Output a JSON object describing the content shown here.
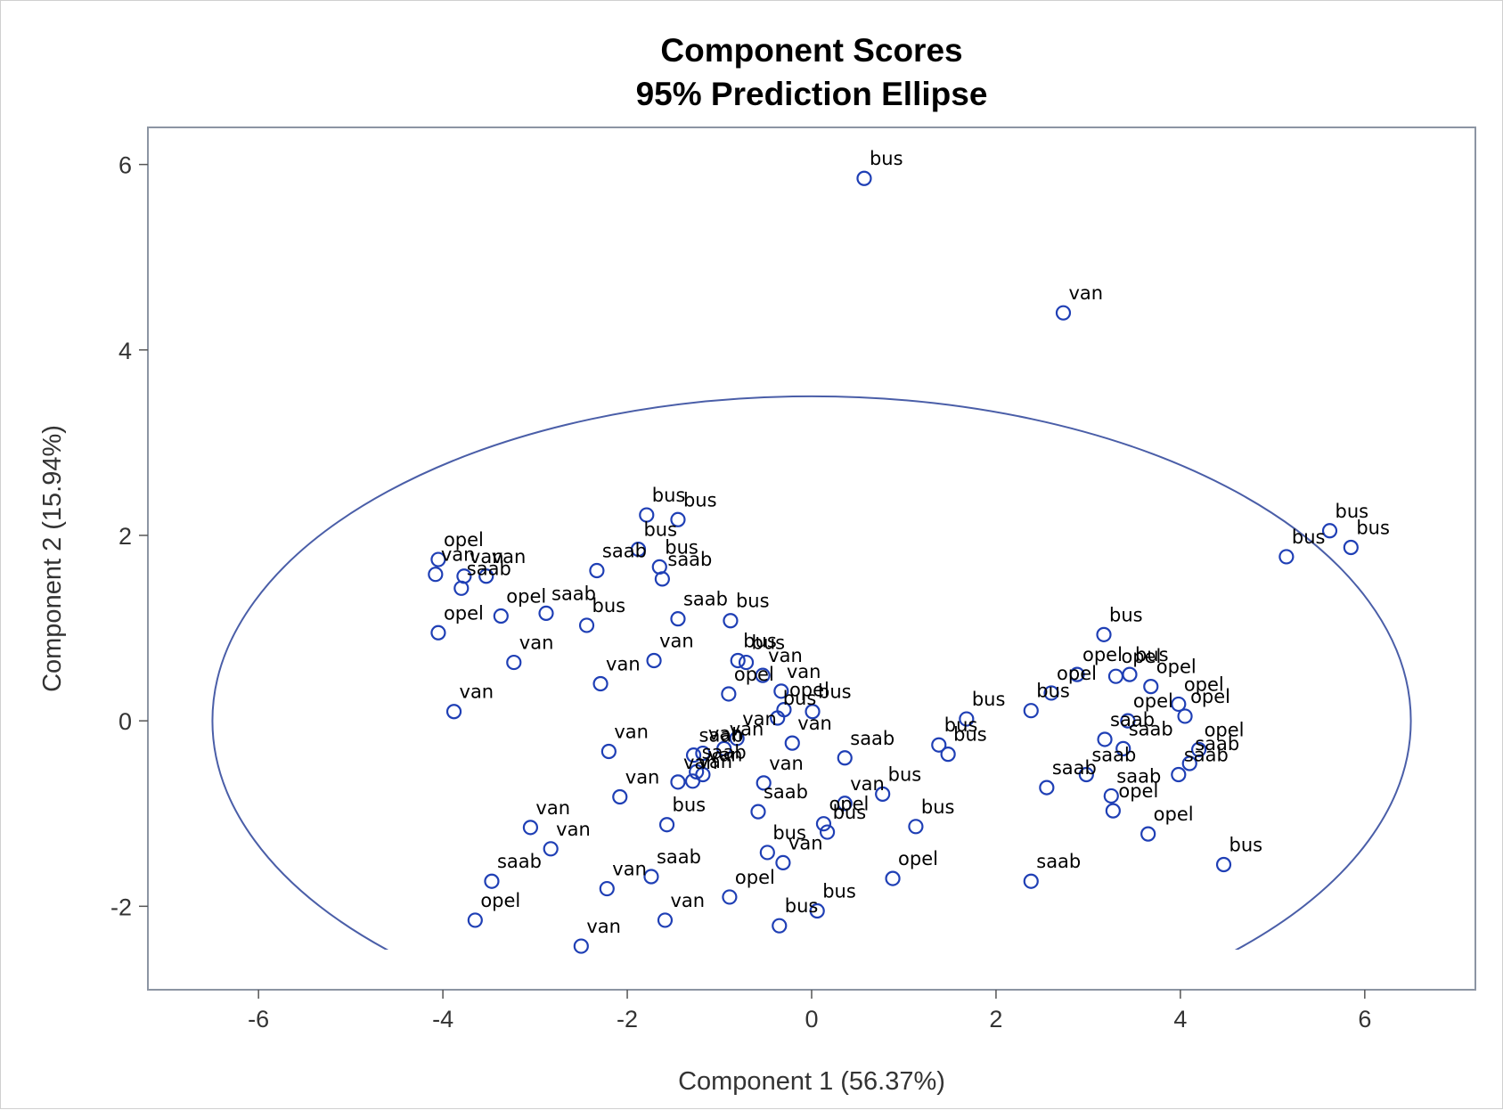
{
  "chart_data": {
    "type": "scatter",
    "title": "Component Scores",
    "subtitle": "95% Prediction Ellipse",
    "xlabel": "Component 1 (56.37%)",
    "ylabel": "Component 2 (15.94%)",
    "xlim": [
      -7.2,
      7.2
    ],
    "ylim": [
      -2.9,
      6.4
    ],
    "xticks": [
      -6,
      -4,
      -2,
      0,
      2,
      4,
      6
    ],
    "xtick_labels": [
      "-6",
      "-4",
      "-2",
      "0",
      "2",
      "4",
      "6"
    ],
    "yticks": [
      -2,
      0,
      2,
      4,
      6
    ],
    "ytick_labels": [
      "-2",
      "0",
      "2",
      "4",
      "6"
    ],
    "grid": false,
    "legend": "none",
    "ellipse": {
      "center": [
        0,
        0
      ],
      "semi_x": 6.5,
      "semi_y": 3.5,
      "label": "95% Prediction Ellipse"
    },
    "colors": {
      "marker": "#1f3fb5",
      "ellipse": "#4a5ea8",
      "frame": "#8c95a3"
    },
    "points": [
      {
        "x": 0.57,
        "y": 5.85,
        "label": "bus"
      },
      {
        "x": 2.73,
        "y": 4.4,
        "label": "van"
      },
      {
        "x": -1.79,
        "y": 2.22,
        "label": "bus"
      },
      {
        "x": -1.45,
        "y": 2.17,
        "label": "bus"
      },
      {
        "x": -1.88,
        "y": 1.85,
        "label": "bus"
      },
      {
        "x": -1.65,
        "y": 1.66,
        "label": "bus"
      },
      {
        "x": -1.62,
        "y": 1.53,
        "label": "saab"
      },
      {
        "x": -2.33,
        "y": 1.62,
        "label": "saab"
      },
      {
        "x": -4.05,
        "y": 1.74,
        "label": "opel"
      },
      {
        "x": -4.08,
        "y": 1.58,
        "label": "van"
      },
      {
        "x": -3.77,
        "y": 1.56,
        "label": "van"
      },
      {
        "x": -3.53,
        "y": 1.56,
        "label": "van"
      },
      {
        "x": -3.8,
        "y": 1.43,
        "label": "saab"
      },
      {
        "x": -2.88,
        "y": 1.16,
        "label": "saab"
      },
      {
        "x": -3.37,
        "y": 1.13,
        "label": "opel"
      },
      {
        "x": -4.05,
        "y": 0.95,
        "label": "opel"
      },
      {
        "x": -1.45,
        "y": 1.1,
        "label": "saab"
      },
      {
        "x": -0.88,
        "y": 1.08,
        "label": "bus"
      },
      {
        "x": -2.44,
        "y": 1.03,
        "label": "bus"
      },
      {
        "x": -3.23,
        "y": 0.63,
        "label": "van"
      },
      {
        "x": -1.71,
        "y": 0.65,
        "label": "van"
      },
      {
        "x": -0.8,
        "y": 0.65,
        "label": "bus"
      },
      {
        "x": -0.71,
        "y": 0.63,
        "label": "bus"
      },
      {
        "x": -0.53,
        "y": 0.49,
        "label": "van"
      },
      {
        "x": -2.29,
        "y": 0.4,
        "label": "van"
      },
      {
        "x": -0.9,
        "y": 0.29,
        "label": "opel"
      },
      {
        "x": -0.33,
        "y": 0.32,
        "label": "van"
      },
      {
        "x": -3.88,
        "y": 0.1,
        "label": "van"
      },
      {
        "x": -0.3,
        "y": 0.12,
        "label": "opel"
      },
      {
        "x": -0.37,
        "y": 0.03,
        "label": "bus"
      },
      {
        "x": 0.01,
        "y": 0.1,
        "label": "bus"
      },
      {
        "x": -0.81,
        "y": -0.19,
        "label": "van"
      },
      {
        "x": -0.21,
        "y": -0.24,
        "label": "van"
      },
      {
        "x": -2.2,
        "y": -0.33,
        "label": "van"
      },
      {
        "x": -1.18,
        "y": -0.35,
        "label": "van"
      },
      {
        "x": -1.28,
        "y": -0.37,
        "label": "saab"
      },
      {
        "x": -0.95,
        "y": -0.3,
        "label": "van"
      },
      {
        "x": -1.25,
        "y": -0.55,
        "label": "saab"
      },
      {
        "x": -1.18,
        "y": -0.58,
        "label": "van"
      },
      {
        "x": -1.45,
        "y": -0.66,
        "label": "van"
      },
      {
        "x": -1.29,
        "y": -0.65,
        "label": "van"
      },
      {
        "x": -0.52,
        "y": -0.67,
        "label": "van"
      },
      {
        "x": -2.08,
        "y": -0.82,
        "label": "van"
      },
      {
        "x": -1.57,
        "y": -1.12,
        "label": "bus"
      },
      {
        "x": -0.58,
        "y": -0.98,
        "label": "saab"
      },
      {
        "x": -3.05,
        "y": -1.15,
        "label": "van"
      },
      {
        "x": -2.83,
        "y": -1.38,
        "label": "van"
      },
      {
        "x": -0.48,
        "y": -1.42,
        "label": "bus"
      },
      {
        "x": -0.31,
        "y": -1.53,
        "label": "van"
      },
      {
        "x": -1.74,
        "y": -1.68,
        "label": "saab"
      },
      {
        "x": -3.47,
        "y": -1.73,
        "label": "saab"
      },
      {
        "x": -2.22,
        "y": -1.81,
        "label": "van"
      },
      {
        "x": -0.89,
        "y": -1.9,
        "label": "opel"
      },
      {
        "x": 0.06,
        "y": -2.05,
        "label": "bus"
      },
      {
        "x": -3.65,
        "y": -2.15,
        "label": "opel"
      },
      {
        "x": -1.59,
        "y": -2.15,
        "label": "van"
      },
      {
        "x": -0.35,
        "y": -2.21,
        "label": "bus"
      },
      {
        "x": -2.5,
        "y": -2.43,
        "label": "van"
      },
      {
        "x": 0.36,
        "y": -0.4,
        "label": "saab"
      },
      {
        "x": 0.36,
        "y": -0.89,
        "label": "van"
      },
      {
        "x": 0.77,
        "y": -0.79,
        "label": "bus"
      },
      {
        "x": 0.13,
        "y": -1.11,
        "label": "opel"
      },
      {
        "x": 0.17,
        "y": -1.2,
        "label": "bus"
      },
      {
        "x": 1.13,
        "y": -1.14,
        "label": "bus"
      },
      {
        "x": 0.88,
        "y": -1.7,
        "label": "opel"
      },
      {
        "x": 1.38,
        "y": -0.26,
        "label": "bus"
      },
      {
        "x": 1.48,
        "y": -0.36,
        "label": "bus"
      },
      {
        "x": 1.68,
        "y": 0.02,
        "label": "bus"
      },
      {
        "x": 2.38,
        "y": 0.11,
        "label": "bus"
      },
      {
        "x": 2.6,
        "y": 0.3,
        "label": "opel"
      },
      {
        "x": 2.88,
        "y": 0.5,
        "label": "opel"
      },
      {
        "x": 3.17,
        "y": 0.93,
        "label": "bus"
      },
      {
        "x": 3.3,
        "y": 0.48,
        "label": "opel"
      },
      {
        "x": 3.45,
        "y": 0.5,
        "label": "bus"
      },
      {
        "x": 3.68,
        "y": 0.37,
        "label": "opel"
      },
      {
        "x": 3.98,
        "y": 0.18,
        "label": "opel"
      },
      {
        "x": 4.05,
        "y": 0.05,
        "label": "opel"
      },
      {
        "x": 3.43,
        "y": 0.0,
        "label": "opel"
      },
      {
        "x": 3.18,
        "y": -0.2,
        "label": "saab"
      },
      {
        "x": 3.38,
        "y": -0.3,
        "label": "saab"
      },
      {
        "x": 4.2,
        "y": -0.31,
        "label": "opel"
      },
      {
        "x": 4.1,
        "y": -0.46,
        "label": "saab"
      },
      {
        "x": 3.98,
        "y": -0.58,
        "label": "saab"
      },
      {
        "x": 2.98,
        "y": -0.58,
        "label": "saab"
      },
      {
        "x": 2.55,
        "y": -0.72,
        "label": "saab"
      },
      {
        "x": 3.25,
        "y": -0.81,
        "label": "saab"
      },
      {
        "x": 3.27,
        "y": -0.97,
        "label": "opel"
      },
      {
        "x": 3.65,
        "y": -1.22,
        "label": "opel"
      },
      {
        "x": 2.38,
        "y": -1.73,
        "label": "saab"
      },
      {
        "x": 4.47,
        "y": -1.55,
        "label": "bus"
      },
      {
        "x": 5.15,
        "y": 1.77,
        "label": "bus"
      },
      {
        "x": 5.62,
        "y": 2.05,
        "label": "bus"
      },
      {
        "x": 5.85,
        "y": 1.87,
        "label": "bus"
      }
    ]
  }
}
